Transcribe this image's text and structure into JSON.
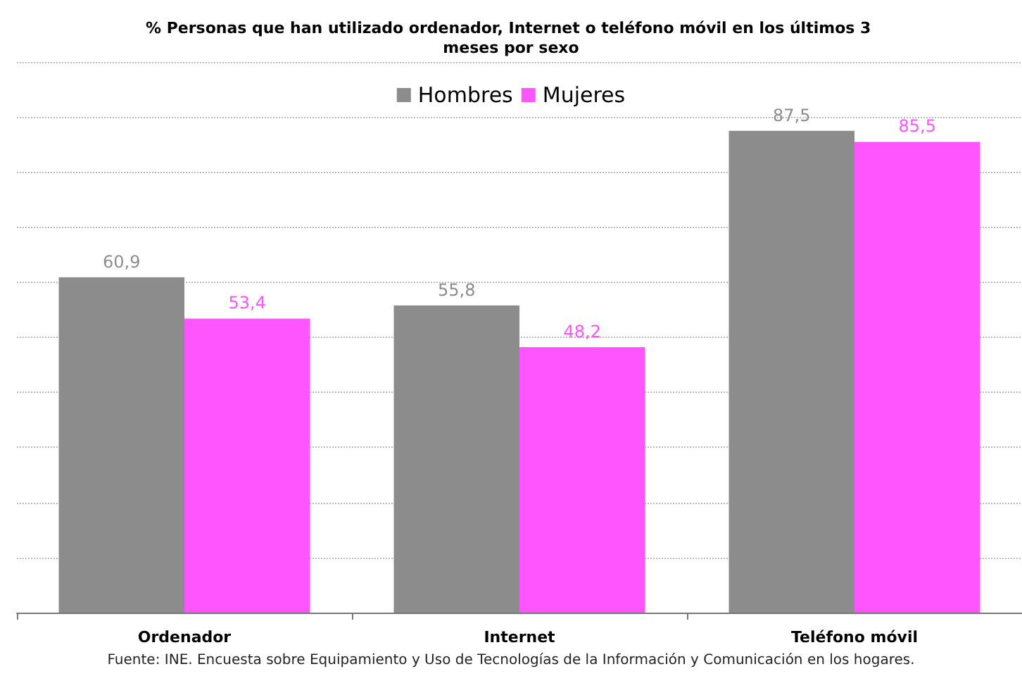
{
  "chart_data": {
    "type": "bar",
    "title": "% Personas que han utilizado ordenador, Internet o teléfono móvil en los últimos 3 meses por sexo",
    "categories": [
      "Ordenador",
      "Internet",
      "Teléfono móvil"
    ],
    "series": [
      {
        "name": "Hombres",
        "color": "#8c8c8c",
        "values": [
          60.9,
          55.8,
          87.5
        ],
        "value_labels": [
          "60,9",
          "55,8",
          "87,5"
        ]
      },
      {
        "name": "Mujeres",
        "color": "#ff55ff",
        "values": [
          53.4,
          48.2,
          85.5
        ],
        "value_labels": [
          "53,4",
          "48,2",
          "85,5"
        ]
      }
    ],
    "ylim": [
      0,
      100
    ],
    "yticks": [
      {
        "value": 0,
        "label": null
      },
      {
        "value": 10,
        "label": null
      },
      {
        "value": 20,
        "label": null
      },
      {
        "value": 30,
        "label": null
      },
      {
        "value": 40,
        "label": null
      },
      {
        "value": 50,
        "label": null
      },
      {
        "value": 60,
        "label": null
      },
      {
        "value": 70,
        "label": null
      },
      {
        "value": 80,
        "label": null
      },
      {
        "value": 90,
        "label": null
      },
      {
        "value": 100,
        "label": null
      }
    ],
    "tick_labels": "x",
    "grid": "y",
    "legend": "top",
    "annotations": [
      "Fuente: INE. Encuesta sobre Equipamiento y Uso de Tecnologías de la Información y Comunicación en los hogares."
    ]
  }
}
